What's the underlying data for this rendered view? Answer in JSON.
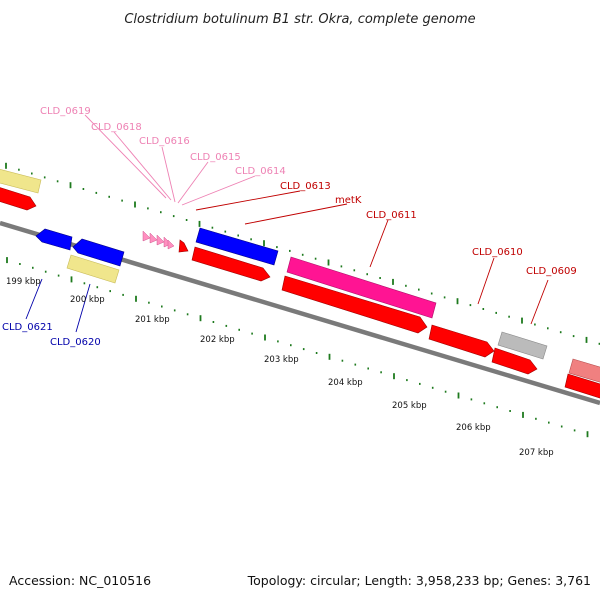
{
  "title": "Clostridium botulinum B1 str. Okra, complete genome",
  "footer": {
    "accession": "Accession: NC_010516",
    "summary": "Topology: circular; Length: 3,958,233 bp; Genes: 3,761"
  },
  "colors": {
    "cds": "#ff0000",
    "highlight": "#ff1493",
    "reverse": "#0000ff",
    "pink_gene": "#ff8fc0",
    "pale_yellow": "#f0e68c",
    "grey_gene": "#bbbbbb",
    "light_red": "#f08080",
    "backbone": "#777777",
    "tick": "#1e7a1e",
    "label_dark_red": "#c00000",
    "label_pink": "#ee82b4",
    "label_blue": "#0000aa"
  },
  "tick_labels": [
    "199 kbp",
    "200 kbp",
    "201 kbp",
    "202 kbp",
    "203 kbp",
    "204 kbp",
    "205 kbp",
    "206 kbp",
    "207 kbp"
  ],
  "gene_labels": [
    {
      "id": "CLD_0619",
      "text": "CLD_0619",
      "color_key": "label_pink"
    },
    {
      "id": "CLD_0618",
      "text": "CLD_0618",
      "color_key": "label_pink"
    },
    {
      "id": "CLD_0616",
      "text": "CLD_0616",
      "color_key": "label_pink"
    },
    {
      "id": "CLD_0615",
      "text": "CLD_0615",
      "color_key": "label_pink"
    },
    {
      "id": "CLD_0614",
      "text": "CLD_0614",
      "color_key": "label_pink"
    },
    {
      "id": "CLD_0613",
      "text": "CLD_0613",
      "color_key": "label_dark_red"
    },
    {
      "id": "metK",
      "text": "metK",
      "color_key": "label_dark_red"
    },
    {
      "id": "CLD_0611",
      "text": "CLD_0611",
      "color_key": "label_dark_red"
    },
    {
      "id": "CLD_0610",
      "text": "CLD_0610",
      "color_key": "label_dark_red"
    },
    {
      "id": "CLD_0609",
      "text": "CLD_0609",
      "color_key": "label_dark_red"
    },
    {
      "id": "CLD_0621",
      "text": "CLD_0621",
      "color_key": "label_blue"
    },
    {
      "id": "CLD_0620",
      "text": "CLD_0620",
      "color_key": "label_blue"
    }
  ]
}
